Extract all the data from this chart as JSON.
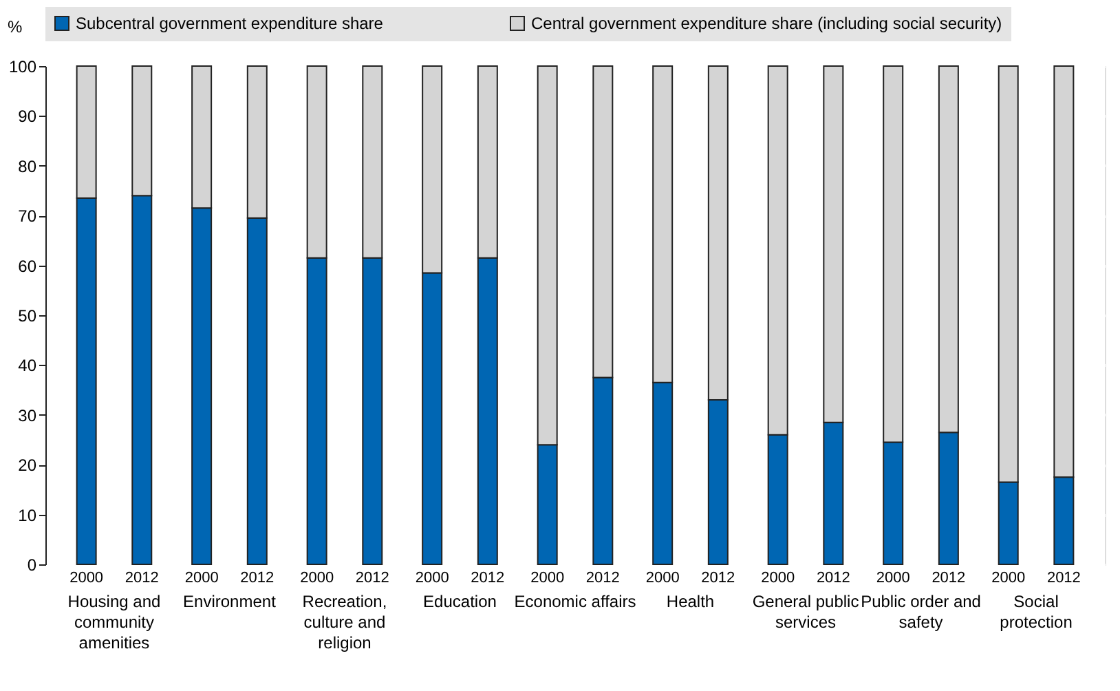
{
  "chart_data": {
    "type": "bar",
    "stacked": true,
    "ylabel": "%",
    "categories": [
      "2000",
      "2012",
      "2000",
      "2012",
      "2000",
      "2012",
      "2000",
      "2012",
      "2000",
      "2012",
      "2000",
      "2012",
      "2000",
      "2012",
      "2000",
      "2012",
      "2000",
      "2012"
    ],
    "annotations": [
      "Housing and community amenities",
      "Environment",
      "Recreation, culture and religion",
      "Education",
      "Economic affairs",
      "Health",
      "General public services",
      "Public order and safety",
      "Social protection"
    ],
    "series": [
      {
        "name": "Subcentral government expenditure share",
        "color": "#0066b3",
        "values": [
          73.5,
          74,
          71.5,
          69.5,
          61.5,
          61.5,
          58.5,
          61.5,
          24,
          37.5,
          36.5,
          33,
          26,
          28.5,
          24.5,
          26.5,
          16.5,
          17.5
        ]
      },
      {
        "name": "Central government expenditure share (including social security)",
        "color": "#d4d4d4",
        "values": [
          26.5,
          26,
          28.5,
          30.5,
          38.5,
          38.5,
          41.5,
          38.5,
          76,
          62.5,
          63.5,
          67,
          74,
          71.5,
          75.5,
          73.5,
          83.5,
          82.5
        ]
      }
    ],
    "ylim": [
      0,
      100
    ],
    "yticks": [
      0,
      10,
      20,
      30,
      40,
      50,
      60,
      70,
      80,
      90,
      100
    ],
    "grid": "y",
    "legend": "top"
  }
}
